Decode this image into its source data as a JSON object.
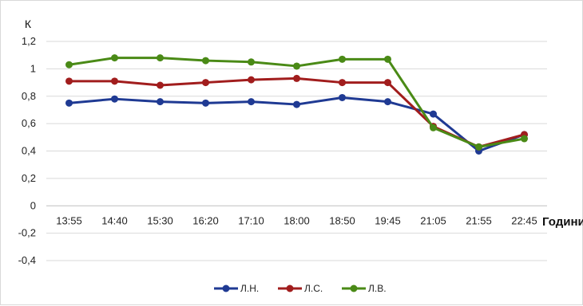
{
  "chart_data": {
    "type": "line",
    "ylabel": "К",
    "xlabel": "Години",
    "ylim": [
      -0.4,
      1.2
    ],
    "yticks": [
      -0.4,
      -0.2,
      0,
      0.2,
      0.4,
      0.6,
      0.8,
      1,
      1.2
    ],
    "ytick_labels": [
      "-0,4",
      "-0,2",
      "0",
      "0,2",
      "0,4",
      "0,6",
      "0,8",
      "1",
      "1,2"
    ],
    "categories": [
      "13:55",
      "14:40",
      "15:30",
      "16:20",
      "17:10",
      "18:00",
      "18:50",
      "19:45",
      "21:05",
      "21:55",
      "22:45"
    ],
    "grid": "horizontal",
    "legend_position": "bottom",
    "series": [
      {
        "name": "Л.Н.",
        "color": "#1f3a93",
        "values": [
          0.75,
          0.78,
          0.76,
          0.75,
          0.76,
          0.74,
          0.79,
          0.76,
          0.67,
          0.4,
          0.52
        ]
      },
      {
        "name": "Л.С.",
        "color": "#a11d1d",
        "values": [
          0.91,
          0.91,
          0.88,
          0.9,
          0.92,
          0.93,
          0.9,
          0.9,
          0.58,
          0.43,
          0.52
        ]
      },
      {
        "name": "Л.В.",
        "color": "#4a8a16",
        "values": [
          1.03,
          1.08,
          1.08,
          1.06,
          1.05,
          1.02,
          1.07,
          1.07,
          0.57,
          0.43,
          0.49
        ]
      }
    ]
  }
}
